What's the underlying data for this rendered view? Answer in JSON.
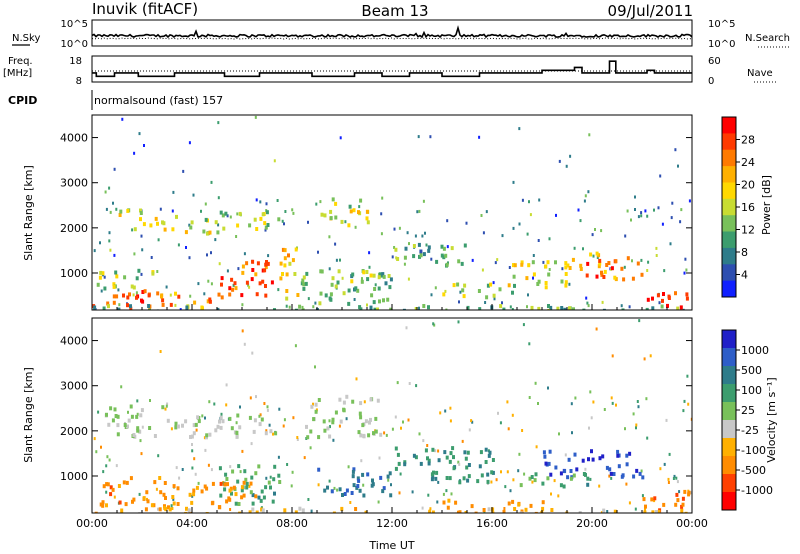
{
  "header": {
    "station": "Inuvik (fitACF)",
    "beam": "Beam 13",
    "date": "09/Jul/2011"
  },
  "noise_panel": {
    "left_label": "N.Sky",
    "right_label": "N.Search",
    "left_ticks": [
      "10^5",
      "10^0"
    ],
    "right_ticks": [
      "10^5",
      "10^0"
    ]
  },
  "freq_panel": {
    "left_label_1": "Freq.",
    "left_label_2": "[MHz]",
    "right_label": "Nave",
    "left_ticks": [
      "18",
      "8"
    ],
    "right_ticks": [
      "60",
      "0"
    ],
    "freq_segments": [
      {
        "t": [
          0.0,
          0.17
        ],
        "v": 11.5
      },
      {
        "t": [
          0.17,
          0.9
        ],
        "v": 10.2
      },
      {
        "t": [
          0.9,
          1.85
        ],
        "v": 11.5
      },
      {
        "t": [
          1.85,
          3.3
        ],
        "v": 10.2
      },
      {
        "t": [
          3.3,
          5.3
        ],
        "v": 11.5
      },
      {
        "t": [
          5.3,
          6.7
        ],
        "v": 10.2
      },
      {
        "t": [
          6.7,
          8.8
        ],
        "v": 11.5
      },
      {
        "t": [
          8.8,
          10.5
        ],
        "v": 10.2
      },
      {
        "t": [
          10.5,
          11.6
        ],
        "v": 11.5
      },
      {
        "t": [
          11.6,
          12.7
        ],
        "v": 10.2
      },
      {
        "t": [
          12.7,
          14.0
        ],
        "v": 11.5
      },
      {
        "t": [
          14.0,
          15.5
        ],
        "v": 10.2
      },
      {
        "t": [
          15.5,
          18.0
        ],
        "v": 11.5
      },
      {
        "t": [
          18.0,
          19.3
        ],
        "v": 12.5
      },
      {
        "t": [
          19.3,
          19.6
        ],
        "v": 13.6
      },
      {
        "t": [
          19.6,
          20.7
        ],
        "v": 11.5
      },
      {
        "t": [
          20.7,
          20.95
        ],
        "v": 16.0
      },
      {
        "t": [
          20.95,
          22.2
        ],
        "v": 11.5
      },
      {
        "t": [
          22.2,
          22.5
        ],
        "v": 12.5
      },
      {
        "t": [
          22.5,
          24.0
        ],
        "v": 11.5
      }
    ]
  },
  "cpid_panel": {
    "label": "CPID",
    "mode": "normalsound (fast) 157"
  },
  "chart_data": [
    {
      "type": "heatmap",
      "title": "Power",
      "ylabel": "Slant Range [km]",
      "xlabel": "",
      "xlim": [
        0,
        24
      ],
      "ylim": [
        180,
        4500
      ],
      "xticks": [
        "00:00",
        "04:00",
        "08:00",
        "12:00",
        "16:00",
        "20:00",
        "00:00"
      ],
      "yticks": [
        1000,
        2000,
        3000,
        4000
      ],
      "colorbar": {
        "label": "Power [dB]",
        "ticks": [
          "28",
          "24",
          "20",
          "16",
          "12",
          "8",
          "4"
        ],
        "colors": [
          "#ff0000",
          "#ff3a00",
          "#ff7a00",
          "#ffb000",
          "#ffd800",
          "#c8dc32",
          "#78c05a",
          "#3c9d6e",
          "#2e7c8a",
          "#2e4fb0",
          "#1020ff"
        ]
      },
      "regions": [
        {
          "t": [
            0.0,
            2.5
          ],
          "r": [
            250,
            700
          ],
          "v": 0.9
        },
        {
          "t": [
            2.5,
            5.0
          ],
          "r": [
            250,
            600
          ],
          "v": 0.75
        },
        {
          "t": [
            5.0,
            7.5
          ],
          "r": [
            500,
            1300
          ],
          "v": 0.85
        },
        {
          "t": [
            0.0,
            2.5
          ],
          "r": [
            700,
            1100
          ],
          "v": 0.45
        },
        {
          "t": [
            1.0,
            3.0
          ],
          "r": [
            2000,
            2450
          ],
          "v": 0.55
        },
        {
          "t": [
            3.0,
            5.0
          ],
          "r": [
            1900,
            2300
          ],
          "v": 0.5
        },
        {
          "t": [
            5.0,
            7.5
          ],
          "r": [
            2000,
            2400
          ],
          "v": 0.45
        },
        {
          "t": [
            7.5,
            8.2
          ],
          "r": [
            300,
            1600
          ],
          "v": 0.6
        },
        {
          "t": [
            9.0,
            11.0
          ],
          "r": [
            2100,
            2700
          ],
          "v": 0.5
        },
        {
          "t": [
            8.0,
            12.0
          ],
          "r": [
            300,
            1100
          ],
          "v": 0.4
        },
        {
          "t": [
            12.0,
            15.0
          ],
          "r": [
            1200,
            1700
          ],
          "v": 0.3
        },
        {
          "t": [
            14.0,
            17.0
          ],
          "r": [
            500,
            800
          ],
          "v": 0.5
        },
        {
          "t": [
            16.5,
            19.0
          ],
          "r": [
            700,
            1300
          ],
          "v": 0.55
        },
        {
          "t": [
            19.0,
            22.0
          ],
          "r": [
            900,
            1500
          ],
          "v": 0.8
        },
        {
          "t": [
            22.0,
            24.0
          ],
          "r": [
            250,
            600
          ],
          "v": 0.9
        },
        {
          "t": [
            0.0,
            24.0
          ],
          "r": [
            200,
            320
          ],
          "v": 0.35
        }
      ]
    },
    {
      "type": "heatmap",
      "title": "Velocity",
      "ylabel": "Slant Range [km]",
      "xlabel": "Time UT",
      "xlim": [
        0,
        24
      ],
      "ylim": [
        180,
        4500
      ],
      "xticks": [
        "00:00",
        "04:00",
        "08:00",
        "12:00",
        "16:00",
        "20:00",
        "00:00"
      ],
      "yticks": [
        1000,
        2000,
        3000,
        4000
      ],
      "colorbar": {
        "label": "Velocity [m s⁻¹]",
        "ticks": [
          "1000",
          "500",
          "100",
          "25",
          "-25",
          "-100",
          "-500",
          "-1000"
        ],
        "colors": [
          "#2020c8",
          "#2e5ec8",
          "#2e7c8a",
          "#3c9d6e",
          "#78c05a",
          "#c8c8c8",
          "#ffb000",
          "#ff8c00",
          "#ff4000",
          "#ff0000"
        ]
      },
      "regions": [
        {
          "t": [
            0.0,
            3.0
          ],
          "r": [
            300,
            1000
          ],
          "v": -0.55
        },
        {
          "t": [
            0.5,
            3.0
          ],
          "r": [
            1900,
            2600
          ],
          "v": 0.0
        },
        {
          "t": [
            3.0,
            7.5
          ],
          "r": [
            1900,
            2400
          ],
          "v": 0.0
        },
        {
          "t": [
            5.0,
            7.5
          ],
          "r": [
            400,
            1300
          ],
          "v": 0.3
        },
        {
          "t": [
            3.0,
            6.5
          ],
          "r": [
            300,
            900
          ],
          "v": -0.5
        },
        {
          "t": [
            8.5,
            11.5
          ],
          "r": [
            1900,
            2800
          ],
          "v": 0.0
        },
        {
          "t": [
            9.0,
            12.0
          ],
          "r": [
            600,
            1200
          ],
          "v": 0.65
        },
        {
          "t": [
            12.0,
            16.0
          ],
          "r": [
            900,
            1700
          ],
          "v": 0.4
        },
        {
          "t": [
            14.0,
            18.0
          ],
          "r": [
            200,
            500
          ],
          "v": -0.5
        },
        {
          "t": [
            18.0,
            22.0
          ],
          "r": [
            1000,
            1600
          ],
          "v": 0.85
        },
        {
          "t": [
            17.0,
            20.0
          ],
          "r": [
            800,
            1100
          ],
          "v": 0.3
        },
        {
          "t": [
            22.0,
            24.0
          ],
          "r": [
            250,
            700
          ],
          "v": -0.7
        },
        {
          "t": [
            0.0,
            24.0
          ],
          "r": [
            200,
            320
          ],
          "v": -0.3
        }
      ]
    }
  ]
}
